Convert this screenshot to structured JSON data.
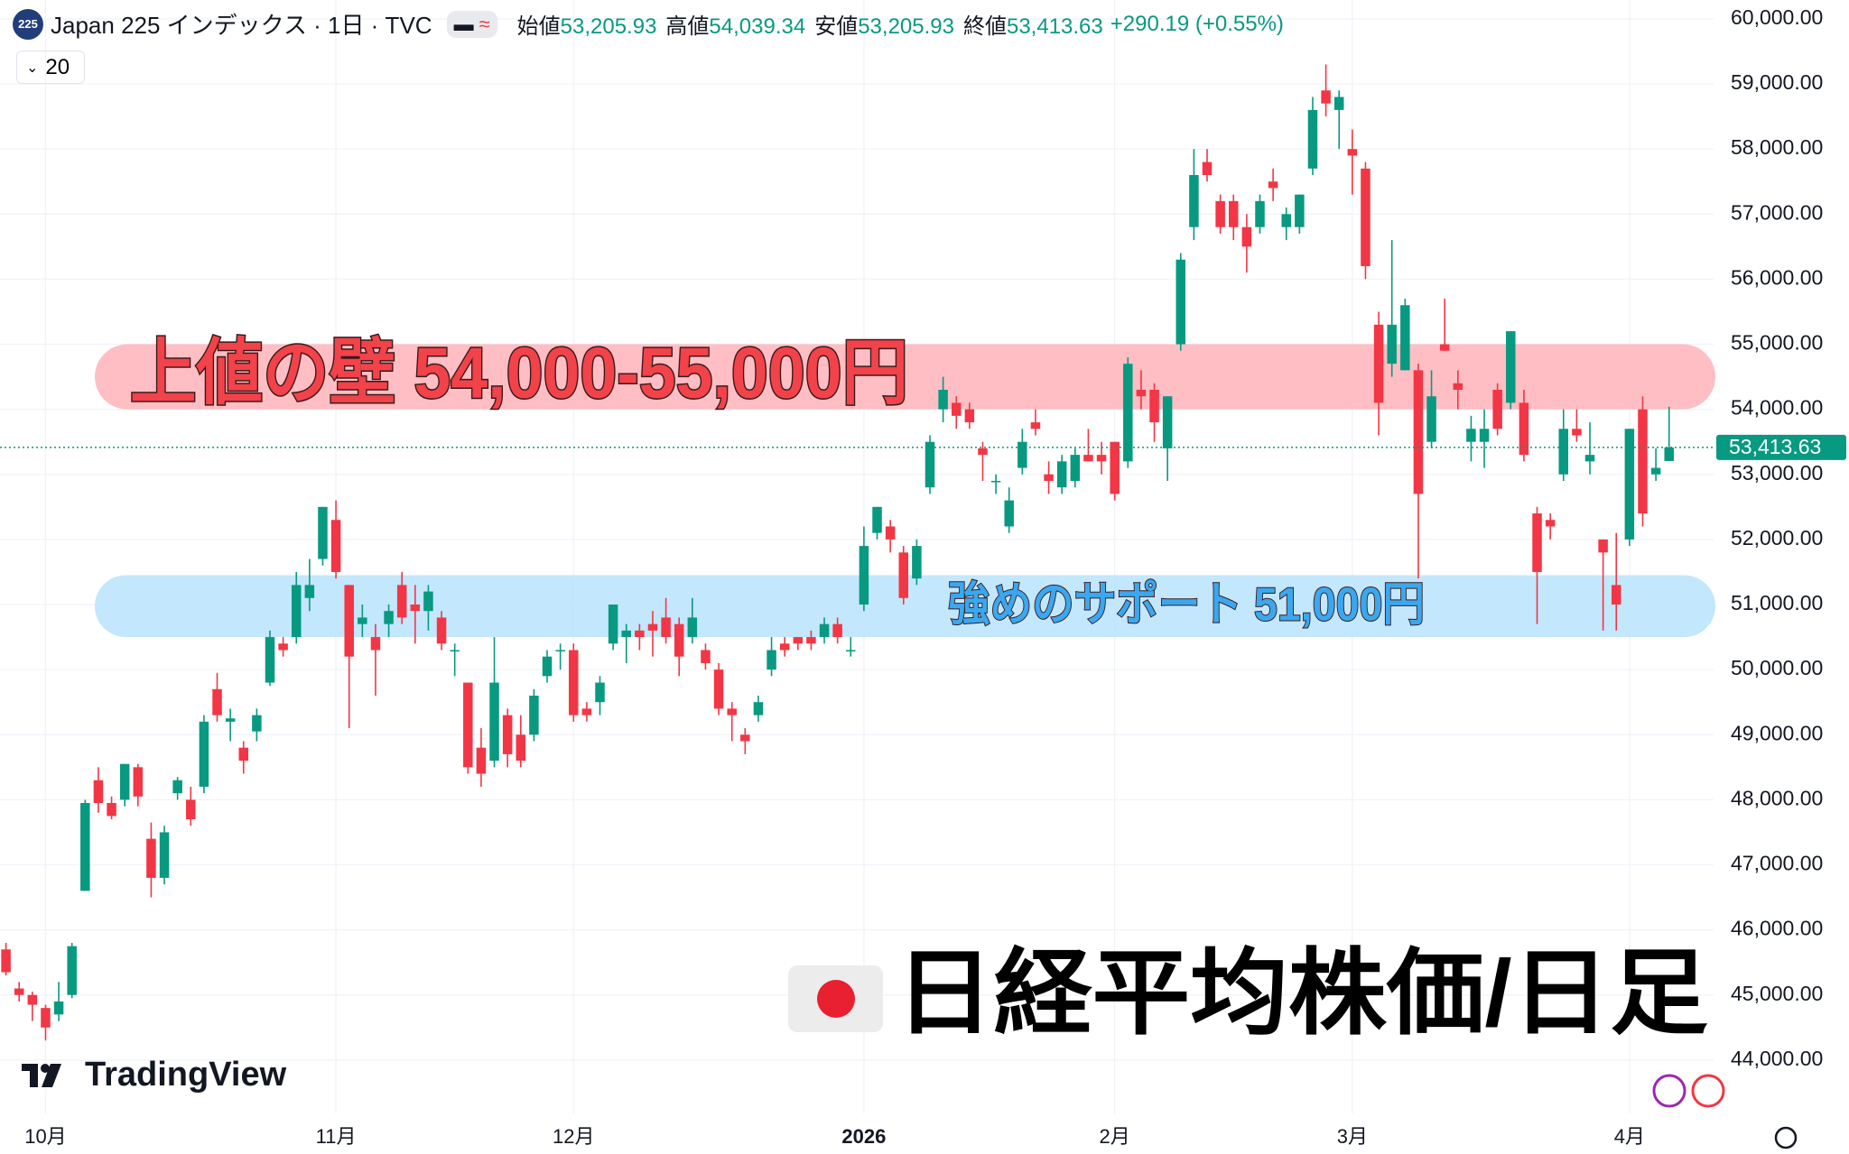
{
  "chart_data": {
    "type": "candlestick",
    "title": "日経平均株価/日足",
    "badge": "225",
    "symbol": "Japan 225 インデックス · 1日 · TVC",
    "interval": "20",
    "legend": [
      {
        "label": "始値",
        "value": "53,205.93"
      },
      {
        "label": "高値",
        "value": "54,039.34"
      },
      {
        "label": "安値",
        "value": "53,205.93"
      },
      {
        "label": "終値",
        "value": "53,413.63"
      }
    ],
    "change": "+290.19 (+0.55%)",
    "watermark": "TradingView",
    "up_color": "#089981",
    "down_color": "#f23645",
    "open": [
      45700,
      45100,
      45000,
      44800,
      44700,
      45000,
      46600,
      48300,
      47950,
      48000,
      48500,
      47400,
      46800,
      48100,
      48000,
      48200,
      49700,
      49200,
      48800,
      49050,
      49800,
      50400,
      50500,
      51100,
      51700,
      52300,
      51300,
      50700,
      50500,
      50700,
      51300,
      51000,
      50900,
      50800,
      50300,
      49800,
      48800,
      48600,
      49300,
      49000,
      49000,
      49900,
      50300,
      50300,
      49400,
      49500,
      50400,
      50500,
      50600,
      50700,
      50800,
      50700,
      50500,
      50300,
      50000,
      49400,
      49000,
      49300,
      50000,
      50400,
      50500,
      50500,
      50500,
      50700,
      50300,
      51000,
      52100,
      52200,
      51800,
      51400,
      52800,
      54000,
      54100,
      54000,
      53400,
      52900,
      52200,
      53100,
      53800,
      53000,
      52800,
      52900,
      53300,
      53300,
      53500,
      53200,
      54300,
      54300,
      53400,
      55000,
      56800,
      57800,
      57200,
      57200,
      56800,
      56800,
      57500,
      56800,
      56800,
      57700,
      58900,
      58600,
      58000,
      57700,
      55300,
      54700,
      54600,
      54600,
      53500,
      55000,
      54400,
      53500,
      53500,
      54300,
      54100,
      54100,
      52400,
      52300,
      53000,
      53700,
      53200,
      52000,
      51300,
      52000,
      54000,
      53000,
      53205.93
    ],
    "high": [
      45800,
      45200,
      45050,
      44850,
      45200,
      45800,
      48000,
      48500,
      48050,
      48550,
      48550,
      47650,
      47600,
      48350,
      48200,
      49300,
      49950,
      49400,
      48900,
      49400,
      50600,
      50500,
      51500,
      51700,
      52500,
      52600,
      51300,
      51000,
      50700,
      51000,
      51500,
      51300,
      51300,
      50900,
      50400,
      49800,
      49100,
      50500,
      49400,
      49300,
      49700,
      50300,
      50400,
      50400,
      49500,
      49900,
      51000,
      50700,
      50700,
      50900,
      51100,
      50800,
      51100,
      50400,
      50100,
      49500,
      49100,
      49600,
      50500,
      50500,
      50500,
      50600,
      50800,
      50800,
      50500,
      52200,
      52500,
      52300,
      51900,
      52000,
      53600,
      54500,
      54200,
      54100,
      53500,
      53000,
      52800,
      53700,
      54000,
      53200,
      53300,
      53400,
      53700,
      53500,
      53500,
      54800,
      54600,
      54400,
      54200,
      56400,
      58000,
      58000,
      57300,
      57300,
      57000,
      57300,
      57700,
      57100,
      57300,
      58800,
      59300,
      58900,
      58300,
      57800,
      55500,
      56600,
      55700,
      54700,
      54600,
      55700,
      54600,
      53900,
      54000,
      54400,
      55200,
      54300,
      52500,
      52400,
      54000,
      54000,
      53800,
      52000,
      52100,
      53700,
      54200,
      53400,
      54039.34
    ],
    "low": [
      45300,
      44900,
      44600,
      44300,
      44600,
      44950,
      46600,
      47800,
      47700,
      47900,
      47900,
      46500,
      46700,
      48000,
      47600,
      48100,
      49200,
      48900,
      48400,
      48900,
      49750,
      50200,
      50400,
      50900,
      51600,
      51400,
      49100,
      50500,
      49600,
      50500,
      50700,
      50400,
      50600,
      50300,
      49900,
      48400,
      48200,
      48500,
      48500,
      48500,
      48900,
      49800,
      50000,
      49200,
      49200,
      49300,
      50300,
      50100,
      50300,
      50200,
      50400,
      49900,
      50400,
      50000,
      49300,
      48900,
      48700,
      49200,
      49900,
      50200,
      50300,
      50300,
      50400,
      50400,
      50200,
      50900,
      52000,
      51800,
      51000,
      51300,
      52700,
      53800,
      53700,
      53700,
      52900,
      52700,
      52100,
      53000,
      53600,
      52700,
      52700,
      52800,
      53200,
      53000,
      52600,
      53100,
      54000,
      53500,
      52900,
      54900,
      56600,
      57500,
      56700,
      56600,
      56100,
      56700,
      57200,
      56600,
      56700,
      57600,
      58500,
      58000,
      57300,
      56000,
      53600,
      54500,
      54600,
      51400,
      53400,
      54900,
      54000,
      53200,
      53100,
      53600,
      54000,
      53200,
      50700,
      52000,
      52900,
      53500,
      53000,
      50600,
      50600,
      51900,
      52200,
      52900,
      53205.93
    ],
    "close": [
      45350,
      45000,
      44850,
      44500,
      44900,
      45750,
      47950,
      47950,
      47750,
      48550,
      48050,
      46800,
      47500,
      48300,
      47700,
      49200,
      49300,
      49250,
      48600,
      49300,
      50500,
      50300,
      51300,
      51300,
      52500,
      51500,
      50200,
      50800,
      50300,
      50900,
      50800,
      50900,
      51200,
      50400,
      50300,
      48500,
      48400,
      49800,
      48700,
      48600,
      49600,
      50200,
      50300,
      49300,
      49300,
      49800,
      51000,
      50600,
      50500,
      50600,
      50500,
      50200,
      50800,
      50100,
      49400,
      49300,
      48900,
      49500,
      50300,
      50300,
      50400,
      50400,
      50700,
      50500,
      50300,
      51900,
      52500,
      52000,
      51100,
      51900,
      53500,
      54300,
      53900,
      53800,
      53300,
      52900,
      52600,
      53500,
      53700,
      52900,
      53200,
      53300,
      53200,
      53200,
      52700,
      54700,
      54200,
      53800,
      54200,
      56300,
      57600,
      57600,
      56800,
      56800,
      56500,
      57200,
      57400,
      57000,
      57300,
      58600,
      58700,
      58800,
      57900,
      56200,
      54100,
      55300,
      55600,
      52700,
      54200,
      54900,
      54300,
      53700,
      53700,
      53700,
      55200,
      53300,
      51500,
      52200,
      53700,
      53600,
      53300,
      51800,
      51000,
      53700,
      52400,
      53100,
      53413.63
    ],
    "ylim": [
      43180,
      60290
    ],
    "yticks": [
      {
        "value": 44000,
        "label": "44,000.00"
      },
      {
        "value": 45000,
        "label": "45,000.00"
      },
      {
        "value": 46000,
        "label": "46,000.00"
      },
      {
        "value": 47000,
        "label": "47,000.00"
      },
      {
        "value": 48000,
        "label": "48,000.00"
      },
      {
        "value": 49000,
        "label": "49,000.00"
      },
      {
        "value": 50000,
        "label": "50,000.00"
      },
      {
        "value": 51000,
        "label": "51,000.00"
      },
      {
        "value": 52000,
        "label": "52,000.00"
      },
      {
        "value": 53000,
        "label": "53,000.00"
      },
      {
        "value": 54000,
        "label": "54,000.00"
      },
      {
        "value": 55000,
        "label": "55,000.00"
      },
      {
        "value": 56000,
        "label": "56,000.00"
      },
      {
        "value": 57000,
        "label": "57,000.00"
      },
      {
        "value": 58000,
        "label": "58,000.00"
      },
      {
        "value": 59000,
        "label": "59,000.00"
      },
      {
        "value": 60000,
        "label": "60,000.00"
      }
    ],
    "xticks": [
      {
        "value": 3,
        "label": "10月"
      },
      {
        "value": 25,
        "label": "11月"
      },
      {
        "value": 43,
        "label": "12月"
      },
      {
        "value": 65,
        "label": "2026"
      },
      {
        "value": 84,
        "label": "2月"
      },
      {
        "value": 102,
        "label": "3月"
      },
      {
        "value": 123,
        "label": "4月"
      }
    ],
    "grid": true,
    "last_price": {
      "value": 53413.63,
      "label": "53,413.63"
    },
    "bands": [
      {
        "label": "上値の壁 54,000-55,000円",
        "from": 54000,
        "to": 55000,
        "color": "#ffb3b8",
        "text_color": "#f2424a"
      },
      {
        "label": "強めのサポート 51,000円",
        "from": 50500,
        "to": 51450,
        "color": "#b8e3fb",
        "text_color": "#3aa8f0"
      }
    ]
  }
}
